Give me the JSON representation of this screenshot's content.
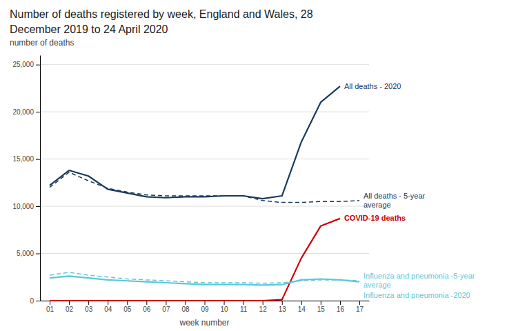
{
  "chart_data": {
    "type": "line",
    "title": [
      "Number of deaths registered by week, England and Wales, 28",
      "December 2019 to 24 April 2020"
    ],
    "xlabel": "week number",
    "ylabel": "number of deaths",
    "x": [
      1,
      2,
      3,
      4,
      5,
      6,
      7,
      8,
      9,
      10,
      11,
      12,
      13,
      14,
      15,
      16,
      17
    ],
    "xlim": [
      0.5,
      17.5
    ],
    "xticks": [
      {
        "value": 1,
        "label": "01"
      },
      {
        "value": 2,
        "label": "02"
      },
      {
        "value": 3,
        "label": "03"
      },
      {
        "value": 4,
        "label": "04"
      },
      {
        "value": 5,
        "label": "05"
      },
      {
        "value": 6,
        "label": "06"
      },
      {
        "value": 7,
        "label": "07"
      },
      {
        "value": 8,
        "label": "08"
      },
      {
        "value": 9,
        "label": "09"
      },
      10,
      11,
      12,
      13,
      14,
      15,
      16,
      17
    ],
    "ylim": [
      0,
      26000
    ],
    "yticks": [
      0,
      {
        "value": 5000,
        "label": "5,000"
      },
      {
        "value": 10000,
        "label": "10,000"
      },
      {
        "value": 15000,
        "label": "15,000"
      },
      {
        "value": 20000,
        "label": "20,000"
      },
      {
        "value": 25000,
        "label": "25,000"
      }
    ],
    "grid": true,
    "series": [
      {
        "name": "All deaths - 2020",
        "color": "#1a3a5c",
        "line_style": "solid",
        "values": [
          12200,
          13800,
          13200,
          11800,
          11400,
          11000,
          10900,
          11000,
          11000,
          11100,
          11100,
          10800,
          11100,
          16800,
          21000,
          22700,
          null
        ]
      },
      {
        "name": "All deaths - 5-year\naverage",
        "color": "#1a3a5c",
        "line_style": "dashed",
        "values": [
          12000,
          13600,
          12700,
          11900,
          11500,
          11200,
          11100,
          11100,
          11100,
          11100,
          11100,
          10600,
          10400,
          10400,
          10500,
          10500,
          10600
        ]
      },
      {
        "name": "COVID-19 deaths",
        "color": "#cc0000",
        "line_style": "solid",
        "values": [
          0,
          0,
          0,
          0,
          0,
          0,
          0,
          0,
          0,
          0,
          0,
          0,
          100,
          4500,
          7900,
          8700,
          null
        ]
      },
      {
        "name": "Influenza and pneumonia -5-year\naverage",
        "color": "#5bc8d8",
        "line_style": "dashed",
        "values": [
          2700,
          3000,
          2700,
          2500,
          2300,
          2200,
          2100,
          2000,
          1900,
          1900,
          1900,
          1850,
          1900,
          2100,
          2200,
          2200,
          2100
        ]
      },
      {
        "name": "Influenza and pneumonia -2020",
        "color": "#5bc8d8",
        "line_style": "solid",
        "values": [
          2400,
          2600,
          2400,
          2200,
          2100,
          2000,
          1900,
          1800,
          1700,
          1700,
          1700,
          1650,
          1700,
          2200,
          2300,
          2200,
          2000
        ]
      }
    ]
  }
}
